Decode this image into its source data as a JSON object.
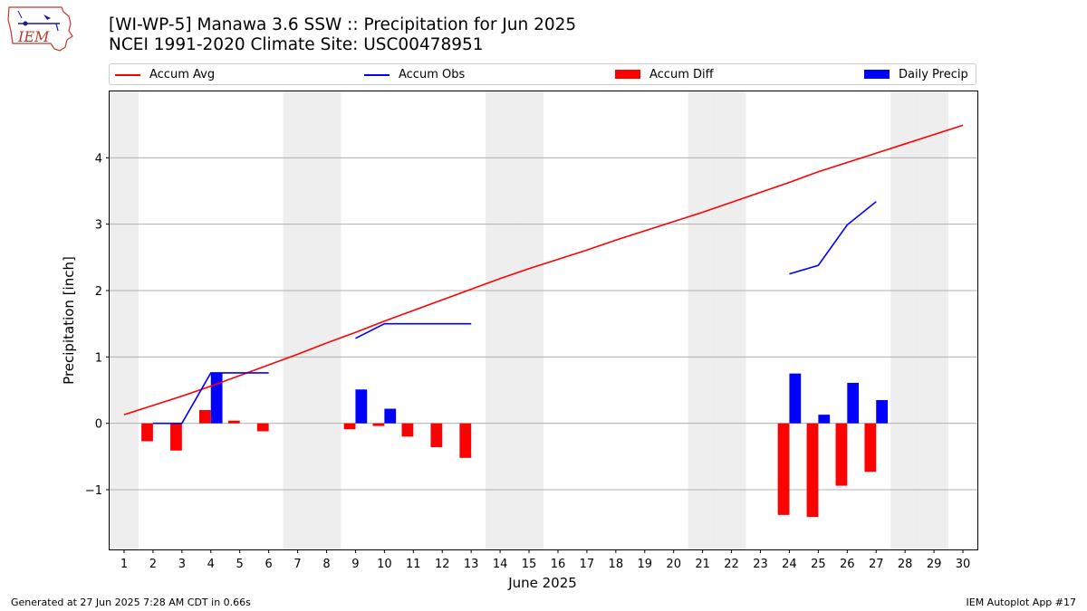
{
  "header": {
    "title_line1": "[WI-WP-5] Manawa 3.6 SSW :: Precipitation for Jun 2025",
    "title_line2": "NCEI 1991-2020 Climate Site: USC00478951",
    "logo_text": "IEM"
  },
  "legend": {
    "items": [
      {
        "label": "Accum Avg",
        "color": "#ff0000",
        "kind": "line"
      },
      {
        "label": "Accum Obs",
        "color": "#0000ff",
        "kind": "line"
      },
      {
        "label": "Accum Diff",
        "color": "#ff0000",
        "kind": "bar"
      },
      {
        "label": "Daily Precip",
        "color": "#0000ff",
        "kind": "bar"
      }
    ]
  },
  "footer": {
    "left": "Generated at 27 Jun 2025 7:28 AM CDT in 0.66s",
    "right": "IEM Autoplot App #17"
  },
  "chart_data": {
    "type": "bar",
    "title": "[WI-WP-5] Manawa 3.6 SSW :: Precipitation for Jun 2025",
    "subtitle": "NCEI 1991-2020 Climate Site: USC00478951",
    "xlabel": "June 2025",
    "ylabel": "Precipitation [inch]",
    "x": [
      1,
      2,
      3,
      4,
      5,
      6,
      7,
      8,
      9,
      10,
      11,
      12,
      13,
      14,
      15,
      16,
      17,
      18,
      19,
      20,
      21,
      22,
      23,
      24,
      25,
      26,
      27,
      28,
      29,
      30
    ],
    "xlim": [
      0.5,
      30.5
    ],
    "ylim": [
      -1.9,
      5.0
    ],
    "yticks": [
      -1,
      0,
      1,
      2,
      3,
      4
    ],
    "ytick_labels": [
      "−1",
      "0",
      "1",
      "2",
      "3",
      "4"
    ],
    "grid": "horizontal",
    "weekend_shading": [
      1,
      7,
      8,
      14,
      15,
      21,
      22,
      28,
      29
    ],
    "weekend_shading_color": "#eeeeee",
    "legend_position": "top",
    "series": [
      {
        "name": "Accum Avg",
        "kind": "line",
        "color": "#ff0000",
        "x": [
          1,
          2,
          3,
          4,
          5,
          6,
          7,
          8,
          9,
          10,
          11,
          12,
          13,
          14,
          15,
          16,
          17,
          18,
          19,
          20,
          21,
          22,
          23,
          24,
          25,
          26,
          27,
          28,
          29,
          30
        ],
        "values": [
          0.13,
          0.27,
          0.41,
          0.56,
          0.72,
          0.88,
          1.04,
          1.21,
          1.37,
          1.54,
          1.7,
          1.86,
          2.02,
          2.18,
          2.33,
          2.47,
          2.61,
          2.76,
          2.9,
          3.04,
          3.18,
          3.33,
          3.48,
          3.63,
          3.79,
          3.93,
          4.07,
          4.21,
          4.35,
          4.49
        ]
      },
      {
        "name": "Accum Obs",
        "kind": "line",
        "color": "#0000ff",
        "segments": [
          {
            "x": [
              2,
              3,
              4,
              5,
              6
            ],
            "values": [
              0.0,
              0.0,
              0.76,
              0.76,
              0.76
            ]
          },
          {
            "x": [
              9,
              10,
              11,
              12,
              13
            ],
            "values": [
              1.28,
              1.5,
              1.5,
              1.5,
              1.5
            ]
          },
          {
            "x": [
              24,
              25,
              26,
              27
            ],
            "values": [
              2.25,
              2.38,
              2.99,
              3.34
            ]
          }
        ]
      },
      {
        "name": "Accum Diff",
        "kind": "bar",
        "color": "#ff0000",
        "x": [
          2,
          3,
          4,
          5,
          6,
          9,
          10,
          11,
          12,
          13,
          24,
          25,
          26,
          27
        ],
        "values": [
          -0.27,
          -0.41,
          0.2,
          0.04,
          -0.12,
          -0.09,
          -0.04,
          -0.2,
          -0.36,
          -0.52,
          -1.38,
          -1.41,
          -0.94,
          -0.73
        ]
      },
      {
        "name": "Daily Precip",
        "kind": "bar",
        "color": "#0000ff",
        "x": [
          2,
          3,
          4,
          5,
          6,
          9,
          10,
          11,
          12,
          13,
          24,
          25,
          26,
          27
        ],
        "values": [
          0.0,
          0.0,
          0.76,
          0.0,
          0.0,
          0.51,
          0.22,
          0.0,
          0.0,
          0.0,
          0.75,
          0.13,
          0.61,
          0.35
        ]
      }
    ]
  }
}
